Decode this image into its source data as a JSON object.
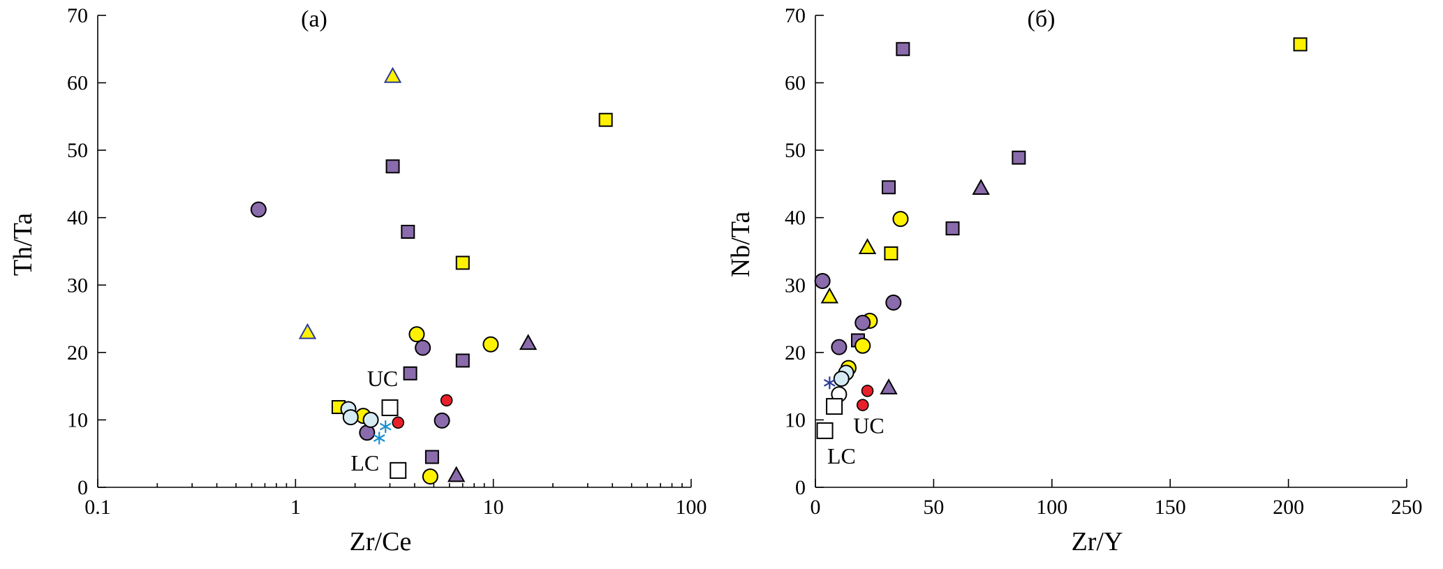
{
  "colors": {
    "purple": "#8a6bab",
    "yellow": "#fff200",
    "red": "#e8202a",
    "lightblue": "#d6ecf5",
    "white": "#ffffff",
    "star": "#1a8fd0",
    "star_b": "#2a3a9a",
    "triangle_outline_blue": "#2a3a9a"
  },
  "chart_data": [
    {
      "type": "scatter",
      "title": "(a)",
      "xlabel": "Zr/Ce",
      "ylabel": "Th/Ta",
      "xscale": "log",
      "xlim": [
        0.1,
        100
      ],
      "ylim": [
        0,
        70
      ],
      "x_ticks": [
        0.1,
        1,
        10,
        100
      ],
      "x_tick_labels": [
        "0.1",
        "1",
        "10",
        "100"
      ],
      "y_ticks": [
        0,
        10,
        20,
        30,
        40,
        50,
        60,
        70
      ],
      "y_tick_labels": [
        "0",
        "10",
        "20",
        "30",
        "40",
        "50",
        "60",
        "70"
      ],
      "grid": false,
      "points": [
        {
          "x": 0.65,
          "y": 41.2,
          "shape": "circle",
          "fill": "purple"
        },
        {
          "x": 4.4,
          "y": 20.7,
          "shape": "circle",
          "fill": "purple"
        },
        {
          "x": 5.5,
          "y": 9.9,
          "shape": "circle",
          "fill": "purple"
        },
        {
          "x": 2.3,
          "y": 8.1,
          "shape": "circle",
          "fill": "purple"
        },
        {
          "x": 3.1,
          "y": 47.6,
          "shape": "square",
          "fill": "purple"
        },
        {
          "x": 3.7,
          "y": 37.9,
          "shape": "square",
          "fill": "purple"
        },
        {
          "x": 7.0,
          "y": 18.8,
          "shape": "square",
          "fill": "purple"
        },
        {
          "x": 3.8,
          "y": 16.9,
          "shape": "square",
          "fill": "purple"
        },
        {
          "x": 4.9,
          "y": 4.5,
          "shape": "square",
          "fill": "purple"
        },
        {
          "x": 15.0,
          "y": 21.4,
          "shape": "triangle",
          "fill": "purple"
        },
        {
          "x": 6.5,
          "y": 1.8,
          "shape": "triangle",
          "fill": "purple"
        },
        {
          "x": 37.0,
          "y": 54.5,
          "shape": "square",
          "fill": "yellow"
        },
        {
          "x": 7.0,
          "y": 33.3,
          "shape": "square",
          "fill": "yellow"
        },
        {
          "x": 1.65,
          "y": 11.9,
          "shape": "square",
          "fill": "yellow"
        },
        {
          "x": 3.1,
          "y": 61.0,
          "shape": "triangle",
          "fill": "yellow",
          "stroke": "triangle_outline_blue"
        },
        {
          "x": 1.15,
          "y": 23.0,
          "shape": "triangle",
          "fill": "yellow",
          "stroke": "triangle_outline_blue"
        },
        {
          "x": 4.1,
          "y": 22.7,
          "shape": "circle",
          "fill": "yellow"
        },
        {
          "x": 9.7,
          "y": 21.2,
          "shape": "circle",
          "fill": "yellow"
        },
        {
          "x": 2.2,
          "y": 10.6,
          "shape": "circle",
          "fill": "yellow"
        },
        {
          "x": 4.8,
          "y": 1.6,
          "shape": "circle",
          "fill": "yellow"
        },
        {
          "x": 1.85,
          "y": 11.6,
          "shape": "circle",
          "fill": "lightblue"
        },
        {
          "x": 1.9,
          "y": 10.4,
          "shape": "circle",
          "fill": "lightblue"
        },
        {
          "x": 2.4,
          "y": 10.0,
          "shape": "circle",
          "fill": "lightblue"
        },
        {
          "x": 5.8,
          "y": 12.9,
          "shape": "circle-small",
          "fill": "red"
        },
        {
          "x": 3.3,
          "y": 9.6,
          "shape": "circle-small",
          "fill": "red"
        },
        {
          "x": 2.85,
          "y": 9.0,
          "shape": "star",
          "fill": "star"
        },
        {
          "x": 2.65,
          "y": 7.3,
          "shape": "star",
          "fill": "star"
        },
        {
          "x": 3.0,
          "y": 11.8,
          "shape": "square-open",
          "fill": "white"
        },
        {
          "x": 3.3,
          "y": 2.5,
          "shape": "square-open",
          "fill": "white"
        }
      ],
      "annotations": [
        {
          "text": "UC",
          "x": 2.3,
          "y": 15.0
        },
        {
          "text": "LC",
          "x": 1.9,
          "y": 2.5
        }
      ]
    },
    {
      "type": "scatter",
      "title": "(б)",
      "xlabel": "Zr/Y",
      "ylabel": "Nb/Ta",
      "xscale": "linear",
      "xlim": [
        0,
        250
      ],
      "ylim": [
        0,
        70
      ],
      "x_ticks": [
        0,
        50,
        100,
        150,
        200,
        250
      ],
      "x_tick_labels": [
        "0",
        "50",
        "100",
        "150",
        "200",
        "250"
      ],
      "y_ticks": [
        0,
        10,
        20,
        30,
        40,
        50,
        60,
        70
      ],
      "y_tick_labels": [
        "0",
        "10",
        "20",
        "30",
        "40",
        "50",
        "60",
        "70"
      ],
      "grid": false,
      "points": [
        {
          "x": 205,
          "y": 65.7,
          "shape": "square",
          "fill": "yellow"
        },
        {
          "x": 37,
          "y": 65.0,
          "shape": "square",
          "fill": "purple"
        },
        {
          "x": 86,
          "y": 48.9,
          "shape": "square",
          "fill": "purple"
        },
        {
          "x": 31,
          "y": 44.5,
          "shape": "square",
          "fill": "purple"
        },
        {
          "x": 70,
          "y": 44.4,
          "shape": "triangle",
          "fill": "purple"
        },
        {
          "x": 36,
          "y": 39.8,
          "shape": "circle",
          "fill": "yellow"
        },
        {
          "x": 58,
          "y": 38.4,
          "shape": "square",
          "fill": "purple"
        },
        {
          "x": 22,
          "y": 35.6,
          "shape": "triangle",
          "fill": "yellow"
        },
        {
          "x": 32,
          "y": 34.7,
          "shape": "square",
          "fill": "yellow"
        },
        {
          "x": 3,
          "y": 30.6,
          "shape": "circle",
          "fill": "purple"
        },
        {
          "x": 6,
          "y": 28.3,
          "shape": "triangle",
          "fill": "yellow"
        },
        {
          "x": 33,
          "y": 27.4,
          "shape": "circle",
          "fill": "purple"
        },
        {
          "x": 23,
          "y": 24.7,
          "shape": "circle",
          "fill": "yellow"
        },
        {
          "x": 20,
          "y": 24.4,
          "shape": "circle",
          "fill": "purple"
        },
        {
          "x": 18,
          "y": 21.8,
          "shape": "square",
          "fill": "purple"
        },
        {
          "x": 20,
          "y": 21.0,
          "shape": "circle",
          "fill": "yellow"
        },
        {
          "x": 10,
          "y": 20.8,
          "shape": "circle",
          "fill": "purple"
        },
        {
          "x": 14,
          "y": 17.7,
          "shape": "circle",
          "fill": "yellow"
        },
        {
          "x": 13,
          "y": 17.0,
          "shape": "circle",
          "fill": "lightblue"
        },
        {
          "x": 11,
          "y": 16.1,
          "shape": "circle",
          "fill": "lightblue"
        },
        {
          "x": 31,
          "y": 14.8,
          "shape": "triangle",
          "fill": "purple"
        },
        {
          "x": 22,
          "y": 14.3,
          "shape": "circle-small",
          "fill": "red"
        },
        {
          "x": 20,
          "y": 12.2,
          "shape": "circle-small",
          "fill": "red"
        },
        {
          "x": 6,
          "y": 15.5,
          "shape": "star",
          "fill": "star_b"
        },
        {
          "x": 10,
          "y": 13.8,
          "shape": "circle",
          "fill": "white"
        },
        {
          "x": 8,
          "y": 12.0,
          "shape": "square-open",
          "fill": "white"
        },
        {
          "x": 4,
          "y": 8.4,
          "shape": "square-open",
          "fill": "white"
        }
      ],
      "annotations": [
        {
          "text": "UC",
          "x": 16,
          "y": 8.0
        },
        {
          "text": "LC",
          "x": 5,
          "y": 3.5
        }
      ]
    }
  ]
}
